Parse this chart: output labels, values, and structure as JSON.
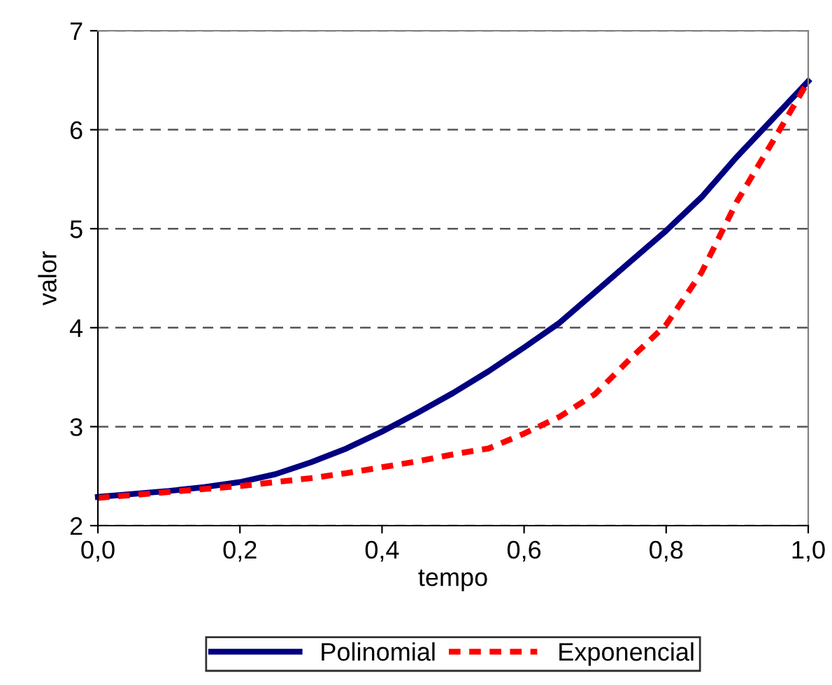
{
  "chart_data": {
    "type": "line",
    "xlabel": "tempo",
    "ylabel": "valor",
    "x": [
      0,
      0.05,
      0.1,
      0.15,
      0.2,
      0.25,
      0.3,
      0.35,
      0.4,
      0.45,
      0.5,
      0.55,
      0.6,
      0.65,
      0.7,
      0.75,
      0.8,
      0.85,
      0.9,
      0.95,
      1.0
    ],
    "series": [
      {
        "name": "Polinomial",
        "color": "#000080",
        "line_style": "solid",
        "values": [
          2.29,
          2.32,
          2.35,
          2.39,
          2.44,
          2.52,
          2.64,
          2.78,
          2.95,
          3.14,
          3.34,
          3.56,
          3.8,
          4.05,
          4.36,
          4.67,
          4.98,
          5.32,
          5.73,
          6.11,
          6.49
        ]
      },
      {
        "name": "Exponencial",
        "color": "#ff0000",
        "line_style": "dashed",
        "values": [
          2.28,
          2.31,
          2.34,
          2.37,
          2.4,
          2.44,
          2.48,
          2.53,
          2.59,
          2.65,
          2.72,
          2.78,
          2.93,
          3.1,
          3.33,
          3.69,
          4.03,
          4.56,
          5.28,
          5.88,
          6.49
        ]
      }
    ],
    "xlim": [
      0,
      1
    ],
    "ylim": [
      2,
      7
    ],
    "xticks": [
      {
        "value": 0,
        "label": "0,0"
      },
      {
        "value": 0.2,
        "label": "0,2"
      },
      {
        "value": 0.4,
        "label": "0,4"
      },
      {
        "value": 0.6,
        "label": "0,6"
      },
      {
        "value": 0.8,
        "label": "0,8"
      },
      {
        "value": 1.0,
        "label": "1,0"
      }
    ],
    "yticks": [
      2,
      3,
      4,
      5,
      6,
      7
    ],
    "grid": "y",
    "legend": "bottom",
    "marker": "none"
  }
}
